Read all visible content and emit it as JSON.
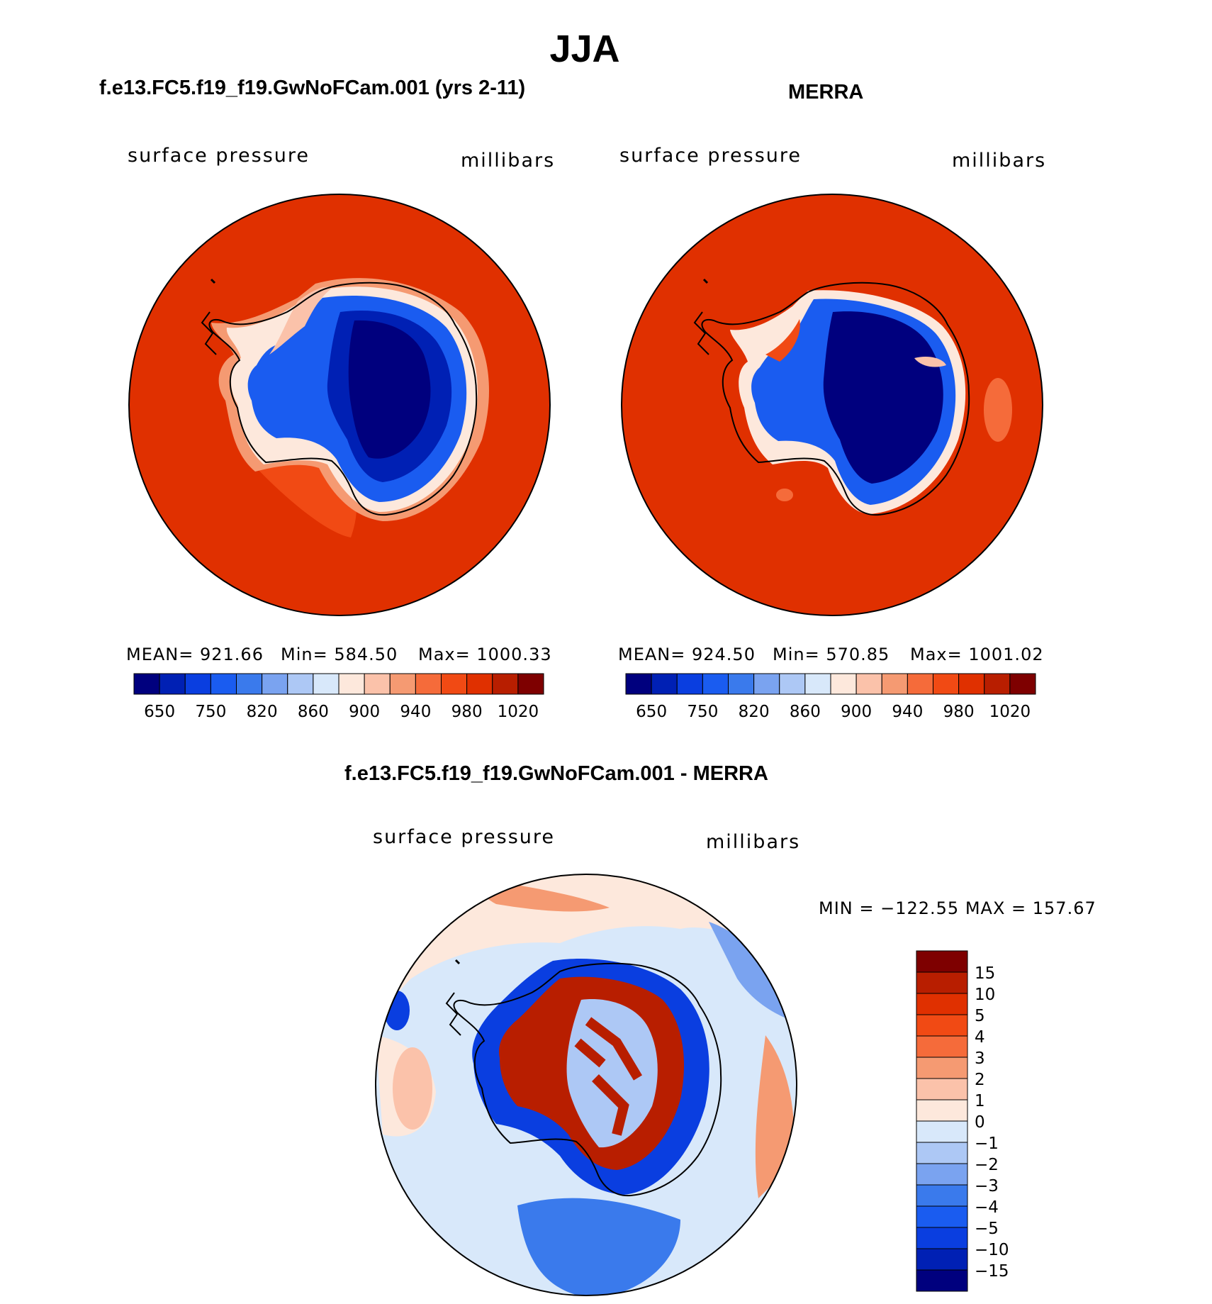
{
  "figure": {
    "title": "JJA",
    "panel_left_title": "f.e13.FC5.f19_f19.GwNoFCam.001 (yrs 2-11)",
    "panel_right_title": "MERRA",
    "diff_title": "f.e13.FC5.f19_f19.GwNoFCam.001 - MERRA"
  },
  "colors": {
    "abs_scale": [
      "#00007e",
      "#0020b4",
      "#0a3ee0",
      "#1a5cf0",
      "#3a7aec",
      "#7aa3f0",
      "#adc8f5",
      "#d8e8fa",
      "#fde8dc",
      "#fbc2aa",
      "#f59a72",
      "#f56b3a",
      "#f14a14",
      "#e03000",
      "#b81e00",
      "#7e0000"
    ],
    "diff_scale": [
      "#00007e",
      "#0020b4",
      "#0a3ee0",
      "#1a5cf0",
      "#3a7aec",
      "#7aa3f0",
      "#adc8f5",
      "#d8e8fa",
      "#fde8dc",
      "#fbc2aa",
      "#f59a72",
      "#f56b3a",
      "#f14a14",
      "#e03000",
      "#b81e00",
      "#7e0000"
    ]
  },
  "chart_data": [
    {
      "type": "heatmap",
      "title": "f.e13.FC5.f19_f19.GwNoFCam.001 (yrs 2-11)",
      "variable": "surface pressure",
      "units": "millibars",
      "stats_text": {
        "mean": "MEAN= 921.66",
        "min": "Min= 584.50",
        "max": "Max= 1000.33"
      },
      "stats": {
        "mean": 921.66,
        "min": 584.5,
        "max": 1000.33
      },
      "projection": "south polar stereographic",
      "colorbar_ticks": [
        "650",
        "750",
        "820",
        "860",
        "900",
        "940",
        "980",
        "1020"
      ]
    },
    {
      "type": "heatmap",
      "title": "MERRA",
      "variable": "surface pressure",
      "units": "millibars",
      "stats_text": {
        "mean": "MEAN= 924.50",
        "min": "Min= 570.85",
        "max": "Max= 1001.02"
      },
      "stats": {
        "mean": 924.5,
        "min": 570.85,
        "max": 1001.02
      },
      "projection": "south polar stereographic",
      "colorbar_ticks": [
        "650",
        "750",
        "820",
        "860",
        "900",
        "940",
        "980",
        "1020"
      ]
    },
    {
      "type": "heatmap",
      "title": "f.e13.FC5.f19_f19.GwNoFCam.001 - MERRA",
      "variable": "surface pressure",
      "units": "millibars",
      "range_text": "MIN = −122.55  MAX = 157.67",
      "stats": {
        "min": -122.55,
        "max": 157.67
      },
      "projection": "south polar stereographic",
      "colorbar_ticks": [
        "15",
        "10",
        "5",
        "4",
        "3",
        "2",
        "1",
        "0",
        "−1",
        "−2",
        "−3",
        "−4",
        "−5",
        "−10",
        "−15"
      ]
    }
  ]
}
